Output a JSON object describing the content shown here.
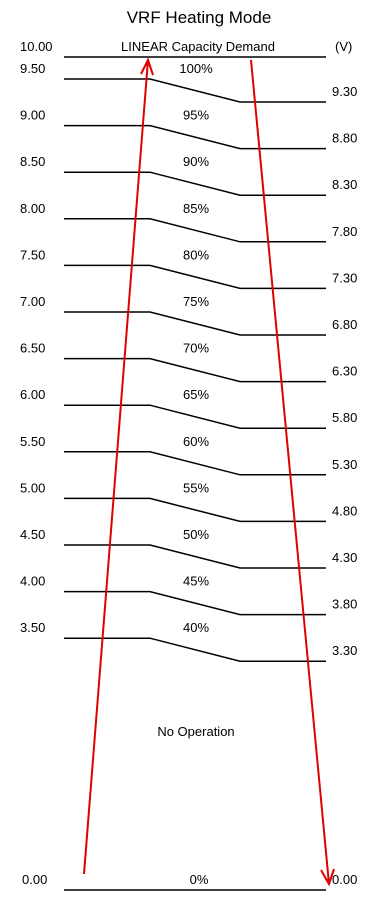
{
  "title": "VRF Heating Mode",
  "subtitle": "LINEAR Capacity Demand",
  "unit": "(V)",
  "top_voltage": "10.00",
  "steps": [
    {
      "on": "9.50",
      "pct": "100%",
      "off": "9.30"
    },
    {
      "on": "9.00",
      "pct": "95%",
      "off": "8.80"
    },
    {
      "on": "8.50",
      "pct": "90%",
      "off": "8.30"
    },
    {
      "on": "8.00",
      "pct": "85%",
      "off": "7.80"
    },
    {
      "on": "7.50",
      "pct": "80%",
      "off": "7.30"
    },
    {
      "on": "7.00",
      "pct": "75%",
      "off": "6.80"
    },
    {
      "on": "6.50",
      "pct": "70%",
      "off": "6.30"
    },
    {
      "on": "6.00",
      "pct": "65%",
      "off": "5.80"
    },
    {
      "on": "5.50",
      "pct": "60%",
      "off": "5.30"
    },
    {
      "on": "5.00",
      "pct": "55%",
      "off": "4.80"
    },
    {
      "on": "4.50",
      "pct": "50%",
      "off": "4.30"
    },
    {
      "on": "4.00",
      "pct": "45%",
      "off": "3.80"
    },
    {
      "on": "3.50",
      "pct": "40%",
      "off": "3.30"
    }
  ],
  "no_operation_label": "No Operation",
  "bottom": {
    "left": "0.00",
    "pct": "0%",
    "right": "0.00"
  },
  "colors": {
    "line": "#000000",
    "arrow": "#e00000"
  }
}
